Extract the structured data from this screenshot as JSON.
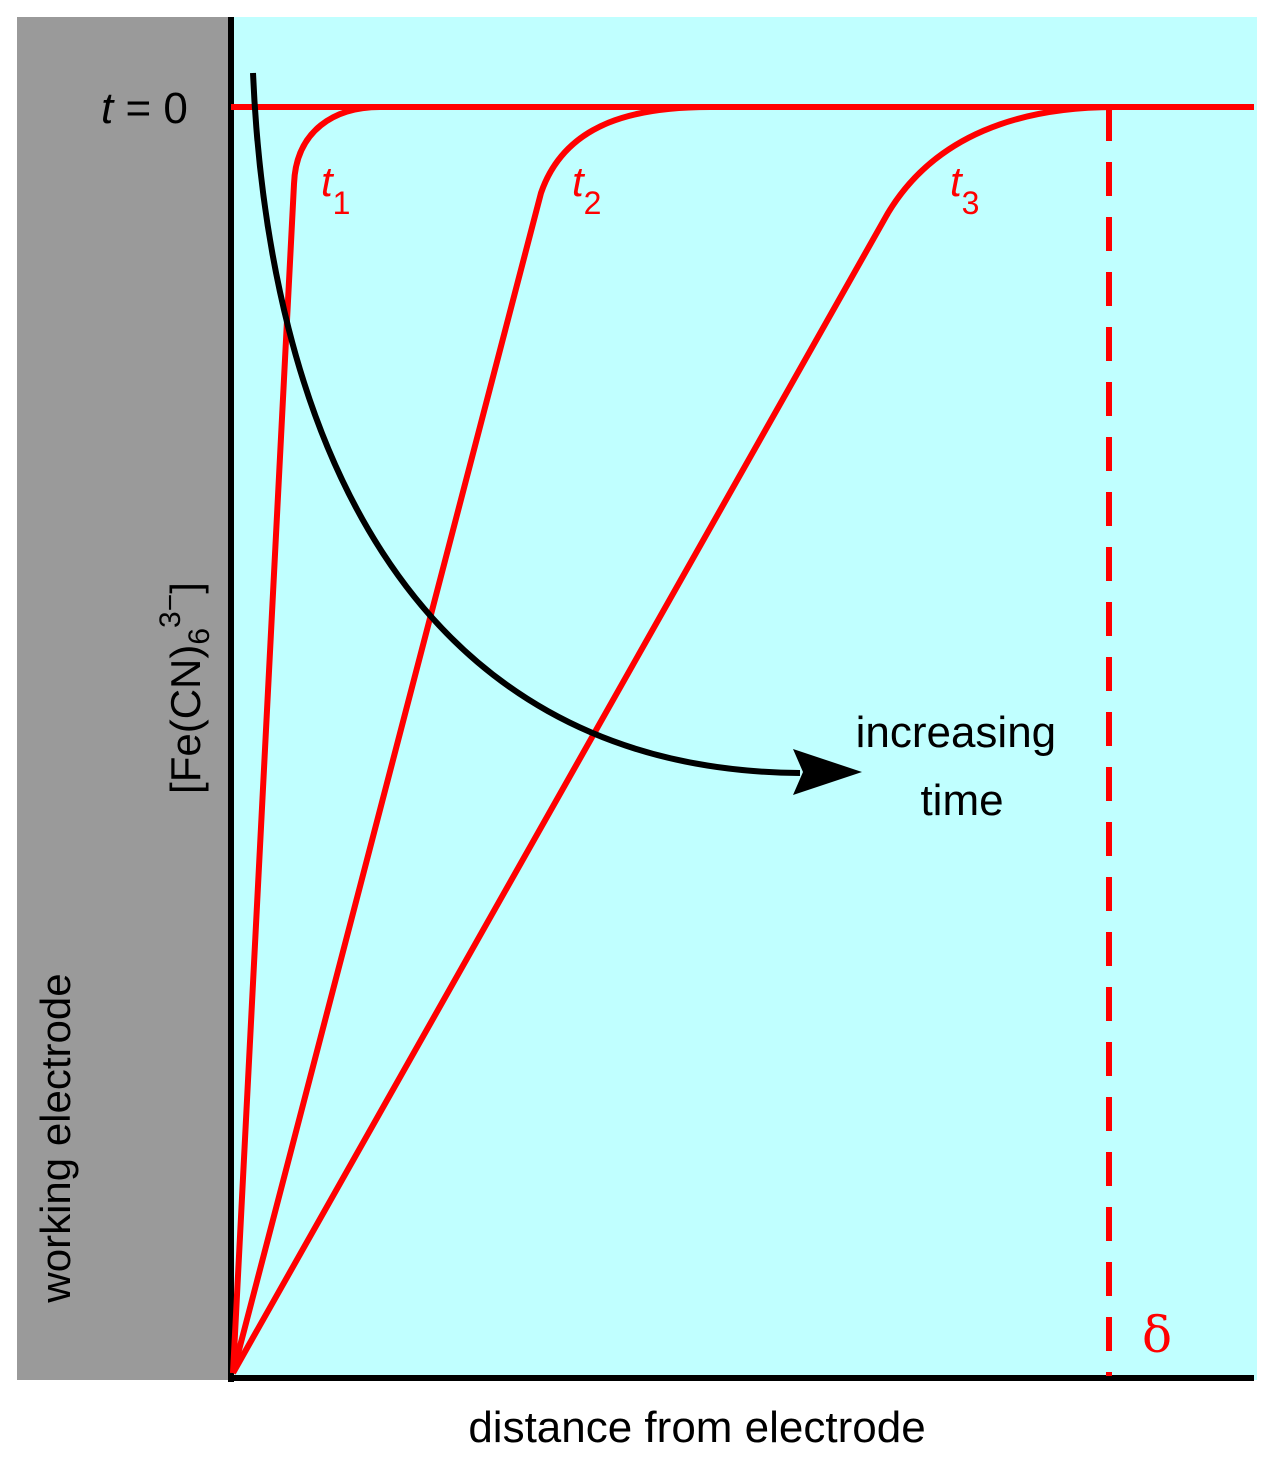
{
  "colors": {
    "electrode": "#9a9a9a",
    "solution": "#c0ffff",
    "curve": "#ff0000",
    "axis": "#000000",
    "arrow": "#000000"
  },
  "electrode": {
    "label": "working electrode"
  },
  "axes": {
    "xlabel": "distance from electrode",
    "ylabel": {
      "base": "[Fe(CN)",
      "sub": "6",
      "sup": "3−",
      "close": "]"
    }
  },
  "initial": {
    "var": "t",
    "eq": " = 0"
  },
  "curves": [
    {
      "var": "t",
      "sub": "1"
    },
    {
      "var": "t",
      "sub": "2"
    },
    {
      "var": "t",
      "sub": "3"
    }
  ],
  "delta": {
    "label": "δ"
  },
  "arrow": {
    "line1": "increasing",
    "line2": "time"
  }
}
